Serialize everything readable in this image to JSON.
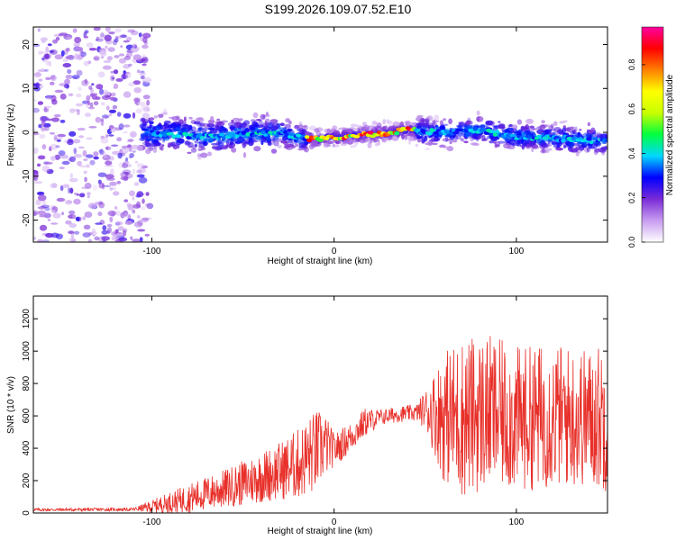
{
  "title": "S199.2026.109.07.52.E10",
  "chart_data": [
    {
      "type": "heatmap",
      "xlabel": "Height of straight line (km)",
      "ylabel": "Frequency (Hz)",
      "xlim": [
        -165,
        150
      ],
      "ylim": [
        -25,
        24
      ],
      "xticks": [
        -100,
        0,
        100
      ],
      "yticks": [
        -20,
        -10,
        0,
        10,
        20
      ],
      "xtick_labels": [
        "-100",
        "0",
        "100"
      ],
      "ytick_labels": [
        "-20",
        "-10",
        "0",
        "10",
        "20"
      ],
      "colorbar": {
        "label": "Normalized spectral amplitude",
        "range": [
          0,
          0.97
        ],
        "ticks": [
          0,
          0.2,
          0.4,
          0.6,
          0.8
        ],
        "tick_labels": [
          "0.0",
          "0.2",
          "0.4",
          "0.6",
          "0.8"
        ],
        "colormap": [
          "#ffffff",
          "#c89cf0",
          "#7a2bd6",
          "#0000ff",
          "#00d8ff",
          "#00ff40",
          "#c8ff00",
          "#ffff00",
          "#ff8000",
          "#ff0000",
          "#ff00a0"
        ]
      },
      "ridge": {
        "description": "strongest signal follows straight line near 0 Hz",
        "points": [
          [
            -105,
            0
          ],
          [
            -70,
            -1
          ],
          [
            -30,
            0
          ],
          [
            -15,
            -1.5
          ],
          [
            20,
            -0.5
          ],
          [
            40,
            0.5
          ],
          [
            55,
            0
          ],
          [
            80,
            0.5
          ],
          [
            100,
            -1
          ],
          [
            130,
            -1.5
          ],
          [
            150,
            -2
          ]
        ],
        "peak_range_km": [
          -15,
          45
        ]
      },
      "noise_region_km": [
        -165,
        -105
      ]
    },
    {
      "type": "line",
      "xlabel": "Height of straight line (km)",
      "ylabel": "SNR (10 * v/v)",
      "xlim": [
        -165,
        150
      ],
      "ylim": [
        0,
        1340
      ],
      "xticks": [
        -100,
        0,
        100
      ],
      "yticks": [
        0,
        200,
        400,
        600,
        800,
        1000,
        1200
      ],
      "xtick_labels": [
        "-100",
        "0",
        "100"
      ],
      "ytick_labels": [
        "0",
        "200",
        "400",
        "600",
        "800",
        "1000",
        "1200"
      ],
      "color": "#e8302a",
      "envelope": {
        "x": [
          -165,
          -110,
          -100,
          -80,
          -60,
          -40,
          -30,
          -20,
          -10,
          -5,
          0,
          5,
          10,
          17,
          25,
          35,
          45,
          50,
          60,
          70,
          85,
          100,
          120,
          140,
          150
        ],
        "mean": [
          20,
          22,
          40,
          90,
          150,
          220,
          260,
          300,
          380,
          420,
          390,
          430,
          480,
          560,
          590,
          610,
          620,
          640,
          600,
          590,
          620,
          580,
          600,
          590,
          600
        ],
        "amp": [
          10,
          10,
          40,
          90,
          120,
          160,
          180,
          220,
          260,
          200,
          100,
          100,
          90,
          90,
          50,
          50,
          50,
          120,
          400,
          500,
          480,
          450,
          450,
          430,
          480
        ]
      }
    }
  ]
}
